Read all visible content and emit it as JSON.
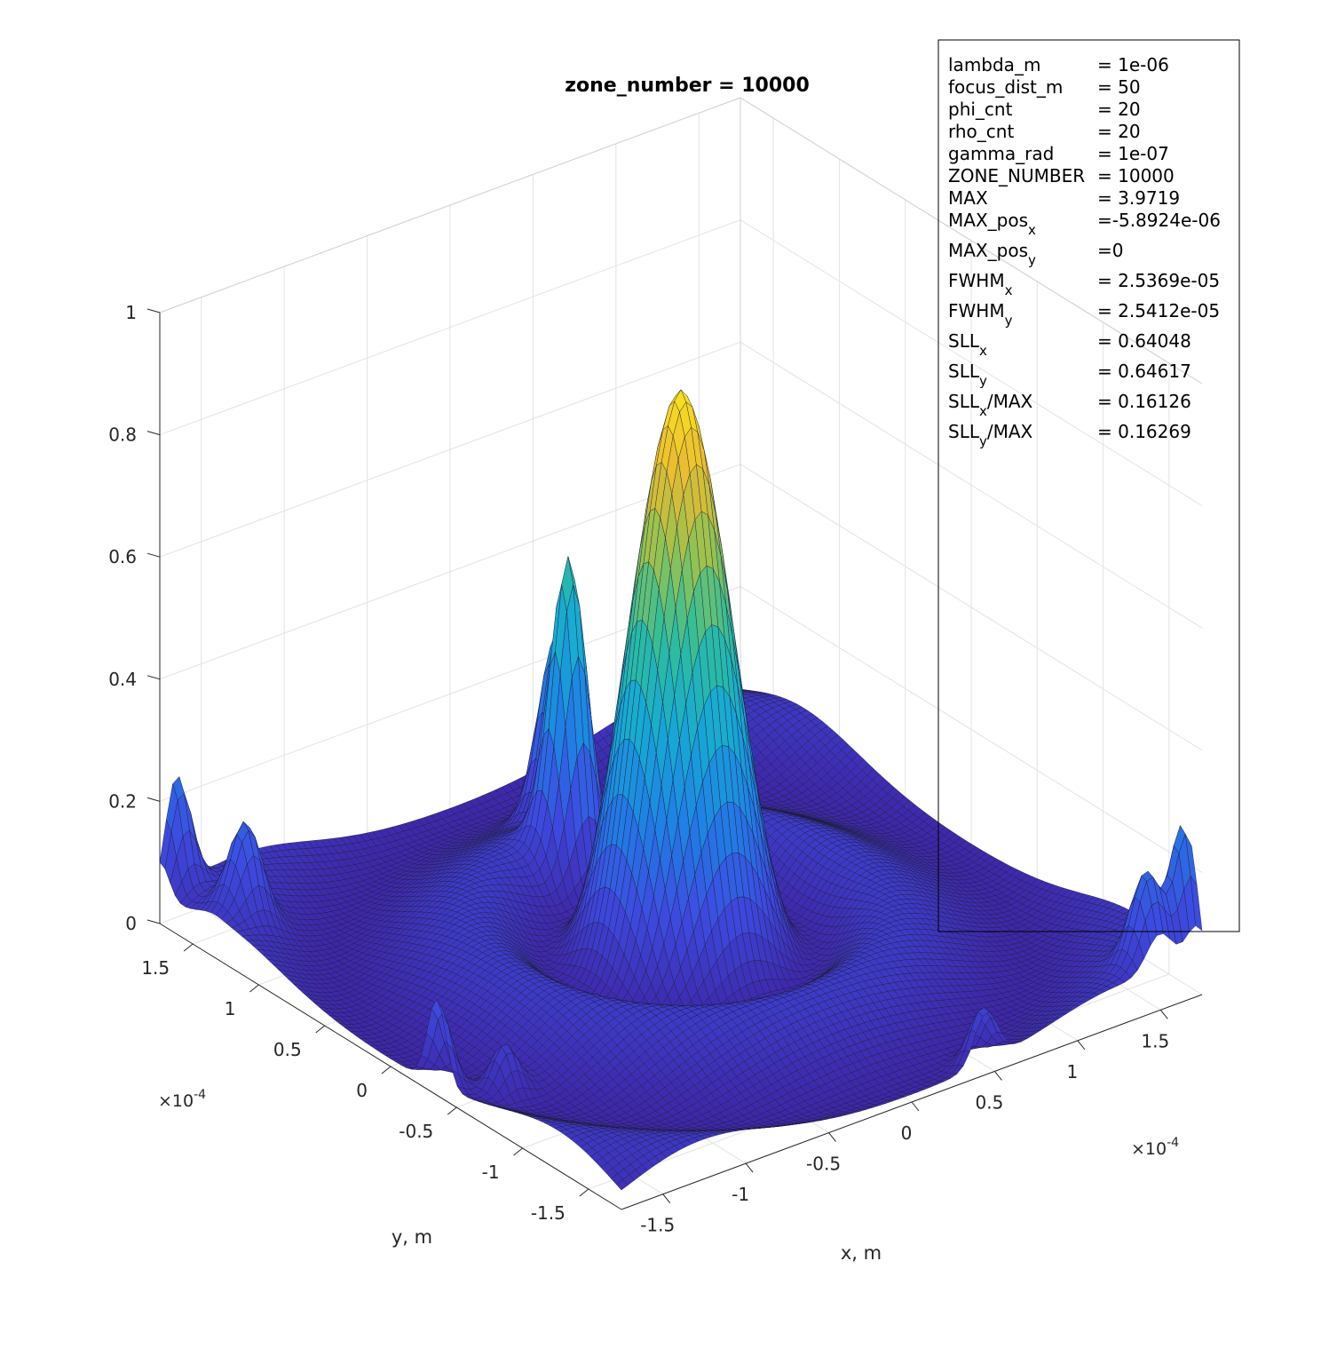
{
  "chart_data": {
    "type": "surface",
    "title": "zone_number = 10000",
    "xlabel": "x, m",
    "ylabel": "y, m",
    "x_exponent": "×10",
    "x_exponent_power": "-4",
    "y_exponent": "×10",
    "y_exponent_power": "-4",
    "xlim": [
      -1.75,
      1.75
    ],
    "ylim": [
      -1.75,
      1.75
    ],
    "zlim": [
      0,
      1
    ],
    "x_ticks": [
      "-1.5",
      "-1",
      "-0.5",
      "0",
      "0.5",
      "1",
      "1.5"
    ],
    "y_ticks": [
      "-1.5",
      "-1",
      "-0.5",
      "0",
      "0.5",
      "1",
      "1.5"
    ],
    "z_ticks": [
      "0",
      "0.2",
      "0.4",
      "0.6",
      "0.8",
      "1"
    ],
    "grid": true,
    "colormap": "parula",
    "colors": {
      "low": "#3e26a8",
      "mid": "#2eb7a4",
      "high": "#fadd27"
    },
    "peak_value": 0.93,
    "annotation": {
      "lines": [
        {
          "name": "lambda_m",
          "sub": "",
          "name_rest": "",
          "value": "= 1e-06"
        },
        {
          "name": "focus_dist_m",
          "sub": "",
          "name_rest": "",
          "value": "= 50"
        },
        {
          "name": "phi_cnt",
          "sub": "",
          "name_rest": "",
          "value": "= 20"
        },
        {
          "name": "rho_cnt",
          "sub": "",
          "name_rest": "",
          "value": "= 20"
        },
        {
          "name": "gamma_rad",
          "sub": "",
          "name_rest": "",
          "value": "= 1e-07"
        },
        {
          "name": "ZONE_NUMBER",
          "sub": "",
          "name_rest": "",
          "value": "= 10000"
        },
        {
          "name": "MAX",
          "sub": "",
          "name_rest": "",
          "value": "= 3.9719"
        },
        {
          "name": "MAX_pos",
          "sub": "x",
          "name_rest": "",
          "value": "=-5.8924e-06"
        },
        {
          "name": "MAX_pos",
          "sub": "y",
          "name_rest": "",
          "value": "=0"
        },
        {
          "name": "FWHM",
          "sub": "x",
          "name_rest": "",
          "value": "= 2.5369e-05"
        },
        {
          "name": "FWHM",
          "sub": "y",
          "name_rest": "",
          "value": "= 2.5412e-05"
        },
        {
          "name": "SLL",
          "sub": "x",
          "name_rest": "",
          "value": "= 0.64048"
        },
        {
          "name": "SLL",
          "sub": "y",
          "name_rest": "",
          "value": "= 0.64617"
        },
        {
          "name": "SLL",
          "sub": "x",
          "name_rest": "/MAX",
          "value": "= 0.16126"
        },
        {
          "name": "SLL",
          "sub": "y",
          "name_rest": "/MAX",
          "value": "= 0.16269"
        }
      ]
    }
  }
}
